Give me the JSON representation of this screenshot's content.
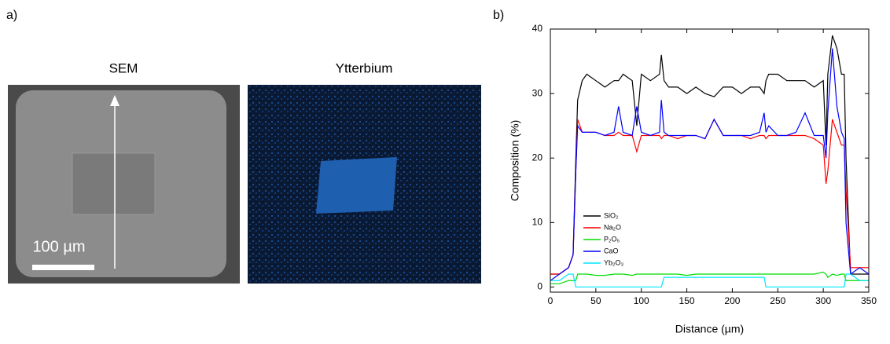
{
  "panel_a": {
    "label": "a)",
    "images": [
      {
        "title": "SEM"
      },
      {
        "title": "Ytterbium"
      }
    ],
    "scale_bar": "100 µm"
  },
  "chart_data": {
    "type": "line",
    "panel_label": "b)",
    "x_label": "Distance (µm)",
    "y_label": "Composition (%)",
    "xlim": [
      0,
      350
    ],
    "xticks": [
      0,
      50,
      100,
      150,
      200,
      250,
      300,
      350
    ],
    "ylim": [
      -0.8,
      40
    ],
    "yticks": [
      0,
      10,
      20,
      30,
      40
    ],
    "legend": "center left",
    "x": [
      0,
      10,
      20,
      25,
      28,
      30,
      35,
      40,
      50,
      60,
      70,
      75,
      80,
      90,
      95,
      100,
      110,
      120,
      122,
      125,
      130,
      140,
      150,
      160,
      170,
      180,
      190,
      200,
      210,
      220,
      230,
      235,
      237,
      240,
      250,
      260,
      270,
      280,
      290,
      300,
      303,
      305,
      310,
      315,
      320,
      323,
      325,
      330,
      340,
      350
    ],
    "series": [
      {
        "name": "SiO₂",
        "color": "#000000",
        "values": [
          2,
          2,
          3,
          5,
          20,
          29,
          32,
          33,
          32,
          31,
          32,
          32,
          33,
          32,
          25,
          33,
          32,
          33,
          36,
          32,
          31,
          31,
          30,
          31,
          30,
          29.5,
          31,
          31,
          30,
          31,
          31,
          30,
          32,
          33,
          33,
          32,
          32,
          32,
          31,
          32,
          22,
          33,
          39,
          37,
          33,
          33,
          20,
          2,
          2,
          2
        ]
      },
      {
        "name": "Na₂O",
        "color": "#ff0000",
        "values": [
          2,
          2,
          3,
          5,
          18,
          26,
          24,
          24,
          24,
          23.5,
          23.5,
          24,
          23.5,
          23.5,
          21,
          23.5,
          23.5,
          23.5,
          23,
          23.5,
          23.5,
          23,
          23.5,
          23.5,
          23,
          26,
          23.5,
          23.5,
          23.5,
          23,
          23.5,
          23.5,
          23,
          23.5,
          23.5,
          23.5,
          23.5,
          23.5,
          23,
          22,
          16,
          18,
          26,
          24,
          22,
          22,
          15,
          3,
          3,
          3
        ]
      },
      {
        "name": "P₂O₅",
        "color": "#00dd00",
        "values": [
          0.5,
          0.5,
          1,
          1,
          1,
          2,
          2,
          2,
          1.8,
          1.8,
          2,
          2,
          2,
          1.8,
          2,
          2,
          2,
          2,
          2,
          2,
          2,
          2,
          1.8,
          2,
          2,
          2,
          2,
          2,
          2,
          2,
          2,
          2,
          2,
          2,
          2,
          2,
          2,
          2,
          2,
          2.3,
          2,
          1.5,
          2,
          1.8,
          2,
          2,
          1,
          1,
          1,
          1
        ]
      },
      {
        "name": "CaO",
        "color": "#0000ff",
        "values": [
          1,
          2,
          3,
          5,
          18,
          25,
          24,
          24,
          24,
          23.5,
          24,
          28,
          24,
          23.5,
          28,
          24,
          23.5,
          24,
          29,
          24,
          23.5,
          23.5,
          23.5,
          23.5,
          23,
          26,
          23.5,
          23.5,
          23.5,
          23.5,
          24,
          27,
          24,
          25,
          23.5,
          23.5,
          24,
          27,
          23.5,
          23.5,
          20,
          27,
          37,
          28,
          24,
          23,
          10,
          2,
          3,
          2
        ]
      },
      {
        "name": "Yb₂O₃",
        "color": "#00e5ff",
        "values": [
          1,
          1,
          2,
          2,
          0,
          0,
          0,
          0,
          0,
          0,
          0,
          0,
          0,
          0,
          0,
          0,
          0,
          0,
          0,
          1.5,
          1.5,
          1.5,
          1.5,
          1.5,
          1.5,
          1.5,
          1.5,
          1.5,
          1.5,
          1.5,
          1.5,
          1.5,
          0,
          0,
          0,
          0,
          0,
          0,
          0,
          0,
          0,
          0,
          0,
          0,
          0,
          0,
          2,
          2,
          1,
          1
        ]
      }
    ]
  }
}
